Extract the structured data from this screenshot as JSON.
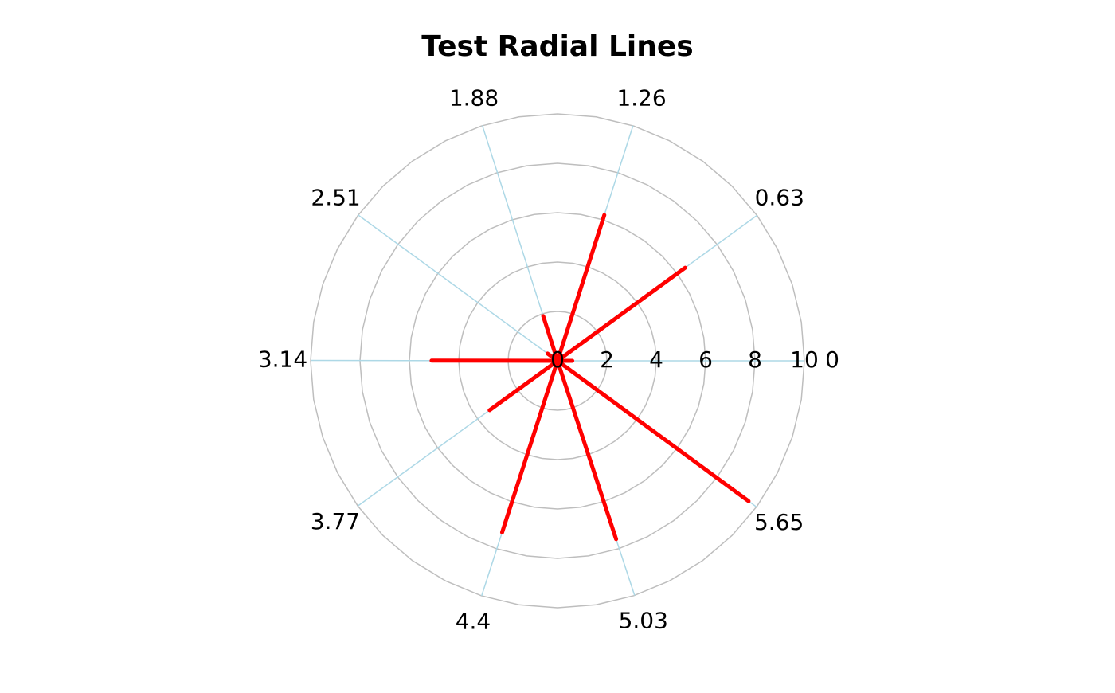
{
  "chart_data": {
    "type": "polar",
    "title": "Test Radial Lines",
    "x": [
      0,
      0.63,
      1.26,
      1.88,
      2.51,
      3.14,
      3.77,
      4.4,
      5.03,
      5.65
    ],
    "values": [
      0.6,
      6.4,
      6.2,
      1.9,
      0.5,
      5.1,
      3.4,
      7.3,
      7.6,
      9.6
    ],
    "color": "#ff0000",
    "ylim": [
      0,
      10
    ],
    "yticks": [
      0,
      2,
      4,
      6,
      8,
      10
    ],
    "xticks": [
      0,
      0.63,
      1.26,
      1.88,
      2.51,
      3.14,
      3.77,
      4.4,
      5.03,
      5.65
    ],
    "grid": true
  }
}
